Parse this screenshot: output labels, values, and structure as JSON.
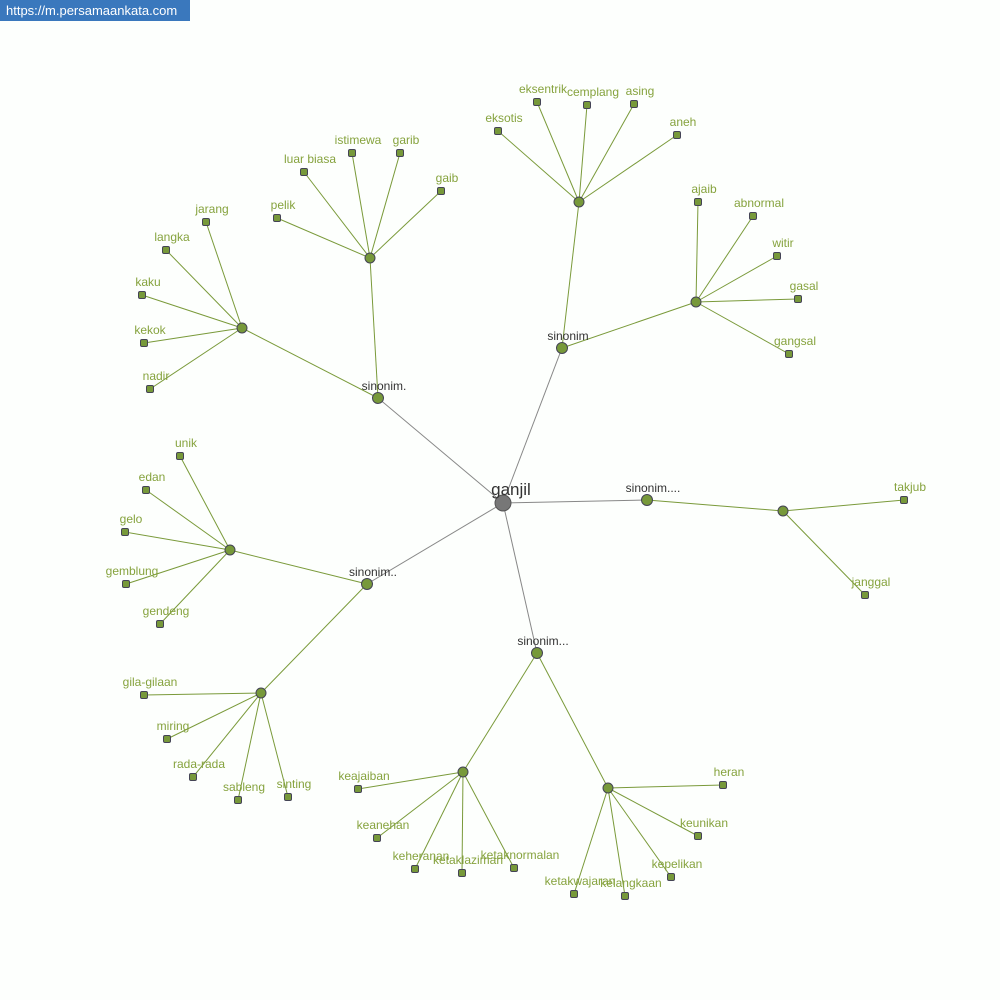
{
  "header": {
    "site_url": "https://m.persamaankata.com"
  },
  "colors": {
    "root_node": "#777777",
    "node": "#77993a",
    "edge_root": "#888888",
    "edge": "#7a9a3a",
    "leaf_label": "#86a33e",
    "mid_label": "#333333",
    "badge": "#3a78bd"
  },
  "graph": {
    "nodes": [
      {
        "label": "ganjil",
        "type": "root"
      },
      {
        "label": "sinonim",
        "type": "group"
      },
      {
        "label": "sinonim.",
        "type": "group"
      },
      {
        "label": "sinonim..",
        "type": "group"
      },
      {
        "label": "sinonim...",
        "type": "group"
      },
      {
        "label": "sinonim....",
        "type": "group"
      },
      {
        "label": "",
        "type": "hub"
      },
      {
        "label": "",
        "type": "hub"
      },
      {
        "label": "",
        "type": "hub"
      },
      {
        "label": "",
        "type": "hub"
      },
      {
        "label": "",
        "type": "hub"
      },
      {
        "label": "",
        "type": "hub"
      },
      {
        "label": "",
        "type": "hub"
      },
      {
        "label": "",
        "type": "hub"
      },
      {
        "label": "",
        "type": "hub"
      },
      {
        "label": "eksotis",
        "type": "leaf"
      },
      {
        "label": "eksentrik",
        "type": "leaf"
      },
      {
        "label": "cemplang",
        "type": "leaf"
      },
      {
        "label": "asing",
        "type": "leaf"
      },
      {
        "label": "aneh",
        "type": "leaf"
      },
      {
        "label": "ajaib",
        "type": "leaf"
      },
      {
        "label": "abnormal",
        "type": "leaf"
      },
      {
        "label": "witir",
        "type": "leaf"
      },
      {
        "label": "gasal",
        "type": "leaf"
      },
      {
        "label": "gangsal",
        "type": "leaf"
      },
      {
        "label": "luar biasa",
        "type": "leaf"
      },
      {
        "label": "istimewa",
        "type": "leaf"
      },
      {
        "label": "garib",
        "type": "leaf"
      },
      {
        "label": "gaib",
        "type": "leaf"
      },
      {
        "label": "pelik",
        "type": "leaf"
      },
      {
        "label": "jarang",
        "type": "leaf"
      },
      {
        "label": "langka",
        "type": "leaf"
      },
      {
        "label": "kaku",
        "type": "leaf"
      },
      {
        "label": "kekok",
        "type": "leaf"
      },
      {
        "label": "nadir",
        "type": "leaf"
      },
      {
        "label": "unik",
        "type": "leaf"
      },
      {
        "label": "edan",
        "type": "leaf"
      },
      {
        "label": "gelo",
        "type": "leaf"
      },
      {
        "label": "gemblung",
        "type": "leaf"
      },
      {
        "label": "gendeng",
        "type": "leaf"
      },
      {
        "label": "gila-gilaan",
        "type": "leaf"
      },
      {
        "label": "miring",
        "type": "leaf"
      },
      {
        "label": "rada-rada",
        "type": "leaf"
      },
      {
        "label": "sableng",
        "type": "leaf"
      },
      {
        "label": "sinting",
        "type": "leaf"
      },
      {
        "label": "keajaiban",
        "type": "leaf"
      },
      {
        "label": "keanehan",
        "type": "leaf"
      },
      {
        "label": "keheranan",
        "type": "leaf"
      },
      {
        "label": "ketaklaziman",
        "type": "leaf"
      },
      {
        "label": "ketaknormalan",
        "type": "leaf"
      },
      {
        "label": "heran",
        "type": "leaf"
      },
      {
        "label": "keunikan",
        "type": "leaf"
      },
      {
        "label": "kepelikan",
        "type": "leaf"
      },
      {
        "label": "ketakwajaran",
        "type": "leaf"
      },
      {
        "label": "kelangkaan",
        "type": "leaf"
      },
      {
        "label": "takjub",
        "type": "leaf"
      },
      {
        "label": "janggal",
        "type": "leaf"
      }
    ],
    "edges": [
      [
        0,
        1
      ],
      [
        0,
        2
      ],
      [
        0,
        3
      ],
      [
        0,
        4
      ],
      [
        0,
        5
      ],
      [
        1,
        6
      ],
      [
        1,
        7
      ],
      [
        2,
        8
      ],
      [
        2,
        9
      ],
      [
        3,
        10
      ],
      [
        3,
        11
      ],
      [
        4,
        12
      ],
      [
        4,
        13
      ],
      [
        5,
        14
      ],
      [
        6,
        15
      ],
      [
        6,
        16
      ],
      [
        6,
        17
      ],
      [
        6,
        18
      ],
      [
        6,
        19
      ],
      [
        7,
        20
      ],
      [
        7,
        21
      ],
      [
        7,
        22
      ],
      [
        7,
        23
      ],
      [
        7,
        24
      ],
      [
        8,
        25
      ],
      [
        8,
        26
      ],
      [
        8,
        27
      ],
      [
        8,
        28
      ],
      [
        8,
        29
      ],
      [
        9,
        30
      ],
      [
        9,
        31
      ],
      [
        9,
        32
      ],
      [
        9,
        33
      ],
      [
        9,
        34
      ],
      [
        10,
        35
      ],
      [
        10,
        36
      ],
      [
        10,
        37
      ],
      [
        10,
        38
      ],
      [
        10,
        39
      ],
      [
        11,
        40
      ],
      [
        11,
        41
      ],
      [
        11,
        42
      ],
      [
        11,
        43
      ],
      [
        11,
        44
      ],
      [
        12,
        45
      ],
      [
        12,
        46
      ],
      [
        12,
        47
      ],
      [
        12,
        48
      ],
      [
        12,
        49
      ],
      [
        13,
        50
      ],
      [
        13,
        51
      ],
      [
        13,
        52
      ],
      [
        13,
        53
      ],
      [
        13,
        54
      ],
      [
        14,
        55
      ],
      [
        14,
        56
      ]
    ]
  }
}
